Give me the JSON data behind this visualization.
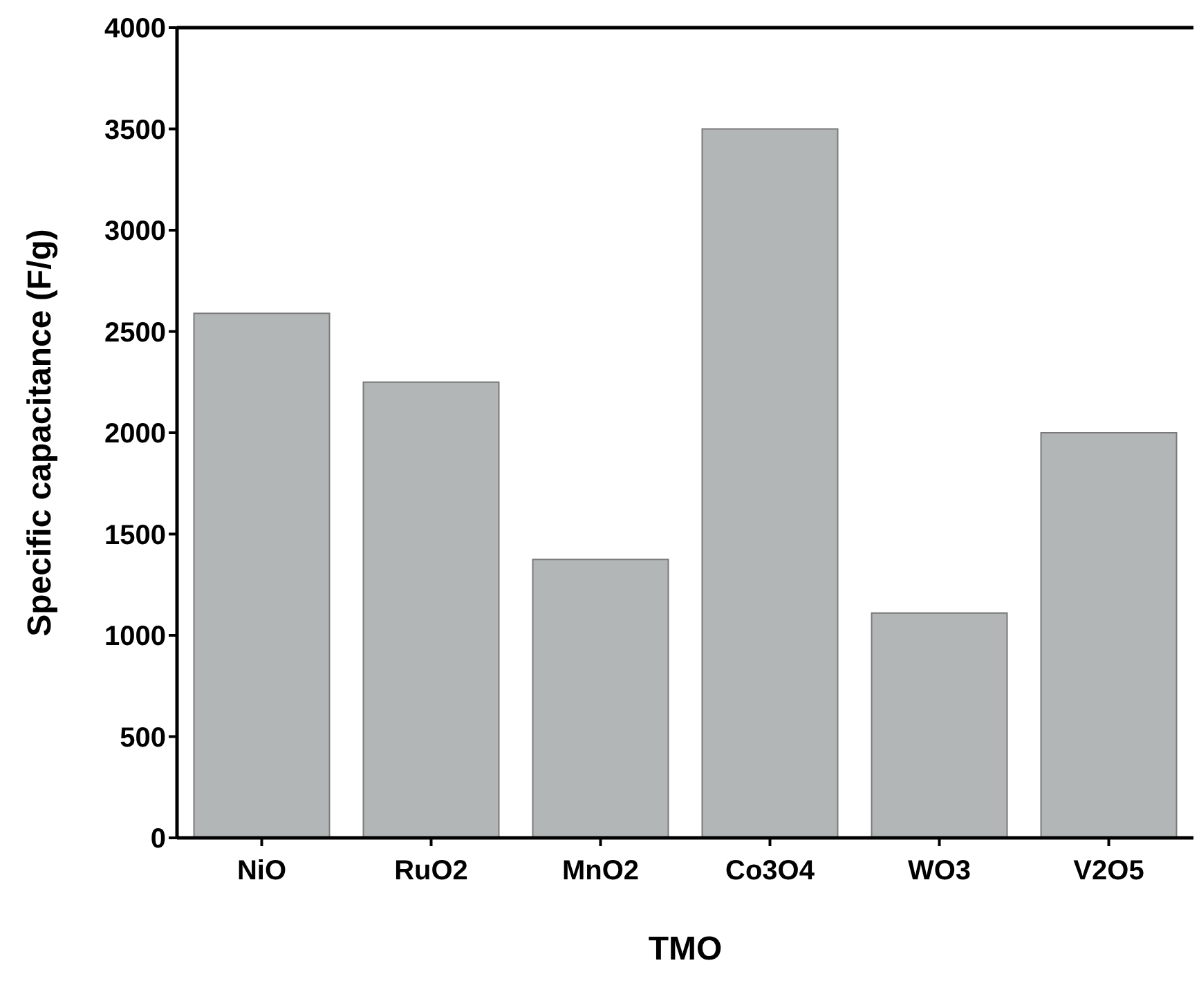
{
  "chart_data": {
    "type": "bar",
    "xlabel": "TMO",
    "ylabel": "Specific capacitance (F/g)",
    "categories": [
      "NiO",
      "RuO2",
      "MnO2",
      "Co3O4",
      "WO3",
      "V2O5"
    ],
    "values": [
      2590,
      2250,
      1375,
      3500,
      1110,
      2000
    ],
    "color": "#b3b6b6",
    "ylim": [
      0,
      4000
    ],
    "yticks": [
      0,
      500,
      1000,
      1500,
      2000,
      2500,
      3000,
      3500,
      4000
    ],
    "grid": false,
    "legend": false
  }
}
